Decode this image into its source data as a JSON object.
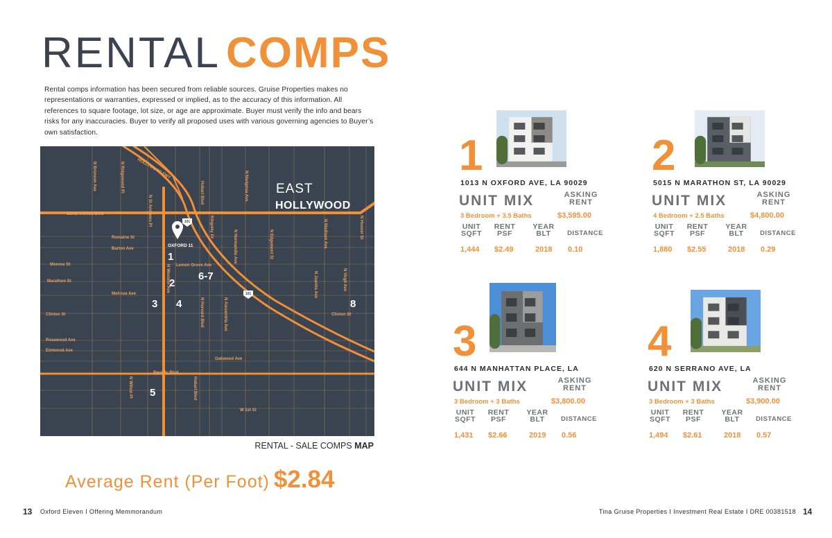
{
  "header": {
    "title_light": "RENTAL",
    "title_bold": "COMPS"
  },
  "disclaimer": "Rental comps information has been secured from reliable sources. Gruise Properties makes no representations or warranties, expressed or implied, as to the accuracy of this information. All references to square footage, lot size, or age are approximate. Buyer must verify the info and bears risks for any inaccuracies. Buyer to verify all proposed uses with various governing agencies to Buyer’s own satisfaction.",
  "map": {
    "area_line_1": "EAST",
    "area_line_2": "HOLLYWOOD",
    "pin_label": "OXFORD 11",
    "freeway_shields": [
      "101",
      "101"
    ],
    "streets": [
      "Santa Monica Blvd",
      "Romaine St",
      "Barton Ave",
      "Monroe St",
      "Lemon Grove Ave",
      "Marathon St",
      "Melrose Ave",
      "Clinton St",
      "Clinton St",
      "Rosewood Ave",
      "Elmwood Ave",
      "Oakwood Ave",
      "Beverly Blvd",
      "W 1st St",
      "N Bronson Ave",
      "N Ridgewood Pl",
      "HOLLYWOOD FWY",
      "N St Andrews Pl",
      "N Western Ave",
      "Hobart Blvd",
      "Kingsley Dr",
      "N Normandie Ave",
      "N Mariposa Ave",
      "N Edgemont St",
      "N Madison Ave",
      "N Hoover St",
      "N Juanita Ave",
      "N Virgil Ave",
      "N Harvard Blvd",
      "N Alexandria Ave",
      "N Wilton Pl",
      "Hobart Blvd"
    ],
    "markers": [
      "1",
      "2",
      "3",
      "4",
      "6-7",
      "8",
      "5"
    ],
    "caption_light": "RENTAL - SALE COMPS",
    "caption_bold": "MAP"
  },
  "average": {
    "label": "Average Rent (Per Foot)",
    "value": "$2.84"
  },
  "comp_labels": {
    "unit_mix": "UNIT MIX",
    "asking_rent": "ASKING RENT",
    "unit_sqft": "UNIT SQFT",
    "rent_psf": "RENT PSF",
    "year_built": "YEAR BLT",
    "distance": "DISTANCE"
  },
  "comps": [
    {
      "number": "1",
      "address": "1013 N OXFORD AVE, LA 90029",
      "unit_mix": "3 Bedroom + 3.5 Baths",
      "asking_rent": "$3,595.00",
      "sqft": "1,444",
      "rent_psf": "$2.49",
      "year_built": "2018",
      "distance": "0.10"
    },
    {
      "number": "2",
      "address": "5015 N MARATHON ST, LA 90029",
      "unit_mix": "4 Bedroom + 2.5 Baths",
      "asking_rent": "$4,800.00",
      "sqft": "1,880",
      "rent_psf": "$2.55",
      "year_built": "2018",
      "distance": "0.29"
    },
    {
      "number": "3",
      "address": "644 N MANHATTAN PLACE, LA",
      "unit_mix": "3 Bedroom + 3 Baths",
      "asking_rent": "$3,800.00",
      "sqft": "1,431",
      "rent_psf": "$2.66",
      "year_built": "2019",
      "distance": "0.56"
    },
    {
      "number": "4",
      "address": "620 N SERRANO AVE, LA",
      "unit_mix": "3 Bedroom + 3 Baths",
      "asking_rent": "$3,900.00",
      "sqft": "1,494",
      "rent_psf": "$2.61",
      "year_built": "2018",
      "distance": "0.57"
    }
  ],
  "footer": {
    "left_page": "13",
    "left_text": "Oxford Eleven  I Offering Memmorandum",
    "right_text": "Tina Gruise Properties I Investment Real Estate I DRE 00381518",
    "right_page": "14"
  }
}
